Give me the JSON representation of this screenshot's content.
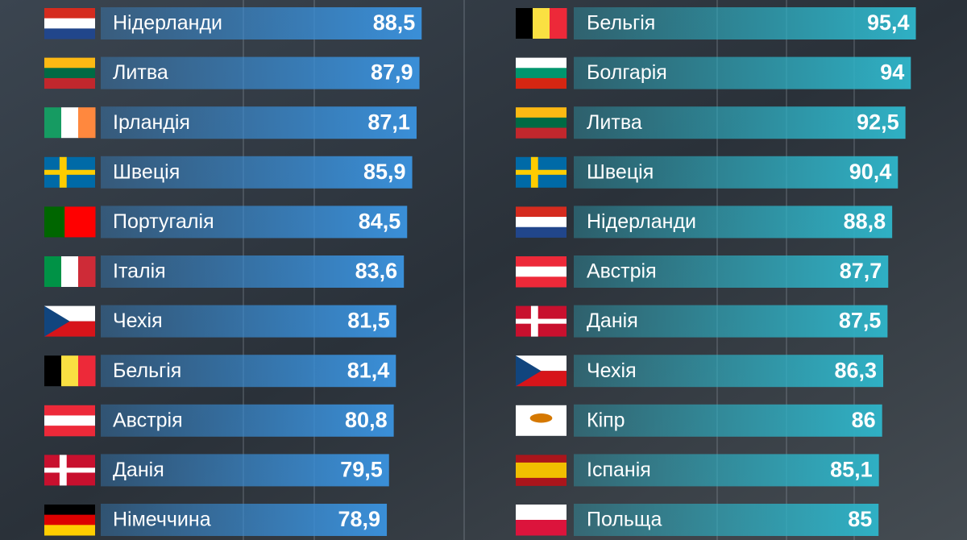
{
  "chart_data": [
    {
      "type": "bar",
      "color": "#3a8fd8",
      "categories": [
        "Нідерланди",
        "Литва",
        "Ірландія",
        "Швеція",
        "Португалія",
        "Італія",
        "Чехія",
        "Бельгія",
        "Австрія",
        "Данія",
        "Німеччина"
      ],
      "values": [
        88.5,
        87.9,
        87.1,
        85.9,
        84.5,
        83.6,
        81.5,
        81.4,
        80.8,
        79.5,
        78.9
      ],
      "value_labels": [
        "88,5",
        "87,9",
        "87,1",
        "85,9",
        "84,5",
        "83,6",
        "81,5",
        "81,4",
        "80,8",
        "79,5",
        "78,9"
      ]
    },
    {
      "type": "bar",
      "color": "#2fb0c4",
      "categories": [
        "Бельгія",
        "Болгарія",
        "Литва",
        "Швеція",
        "Нідерланди",
        "Австрія",
        "Данія",
        "Чехія",
        "Кіпр",
        "Іспанія",
        "Польща"
      ],
      "values": [
        95.4,
        94,
        92.5,
        90.4,
        88.8,
        87.7,
        87.5,
        86.3,
        86,
        85.1,
        85
      ],
      "value_labels": [
        "95,4",
        "94",
        "92,5",
        "90,4",
        "88,8",
        "87,7",
        "87,5",
        "86,3",
        "86",
        "85,1",
        "85"
      ]
    }
  ]
}
